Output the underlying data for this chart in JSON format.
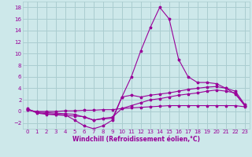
{
  "x": [
    0,
    1,
    2,
    3,
    4,
    5,
    6,
    7,
    8,
    9,
    10,
    11,
    12,
    13,
    14,
    15,
    16,
    17,
    18,
    19,
    20,
    21,
    22,
    23
  ],
  "line1": [
    0.5,
    -0.3,
    -0.5,
    -0.6,
    -0.7,
    -0.8,
    -0.9,
    -1.5,
    -1.3,
    -1.2,
    2.5,
    6.0,
    10.5,
    14.5,
    18.0,
    16.0,
    9.0,
    6.0,
    5.0,
    5.0,
    4.8,
    4.0,
    3.0,
    1.0
  ],
  "line2": [
    0.4,
    -0.2,
    -0.4,
    -0.5,
    -0.6,
    -1.5,
    -2.5,
    -3.0,
    -2.5,
    -1.5,
    2.5,
    2.8,
    2.5,
    2.8,
    3.0,
    3.2,
    3.5,
    3.8,
    4.0,
    4.2,
    4.3,
    4.0,
    3.5,
    1.2
  ],
  "line3": [
    0.3,
    -0.1,
    -0.2,
    -0.3,
    -0.4,
    -0.5,
    -1.0,
    -1.5,
    -1.2,
    -1.0,
    0.5,
    1.0,
    1.5,
    2.0,
    2.2,
    2.5,
    2.8,
    3.0,
    3.2,
    3.5,
    3.7,
    3.5,
    3.2,
    1.0
  ],
  "line4": [
    0.2,
    0.0,
    0.0,
    0.0,
    0.1,
    0.1,
    0.2,
    0.2,
    0.3,
    0.3,
    0.5,
    0.6,
    0.7,
    0.8,
    0.9,
    1.0,
    1.0,
    1.0,
    1.0,
    1.0,
    1.0,
    1.0,
    1.0,
    0.8
  ],
  "color": "#990099",
  "bg_color": "#cde8ea",
  "grid_color": "#aacdd0",
  "xlim": [
    -0.5,
    23.5
  ],
  "ylim": [
    -3,
    19
  ],
  "yticks": [
    -2,
    0,
    2,
    4,
    6,
    8,
    10,
    12,
    14,
    16,
    18
  ],
  "xticks": [
    0,
    1,
    2,
    3,
    4,
    5,
    6,
    7,
    8,
    9,
    10,
    11,
    12,
    13,
    14,
    15,
    16,
    17,
    18,
    19,
    20,
    21,
    22,
    23
  ],
  "xlabel": "Windchill (Refroidissement éolien,°C)",
  "tick_label_color": "#990099",
  "xlabel_color": "#990099",
  "tick_fontsize": 5.0,
  "xlabel_fontsize": 5.5
}
